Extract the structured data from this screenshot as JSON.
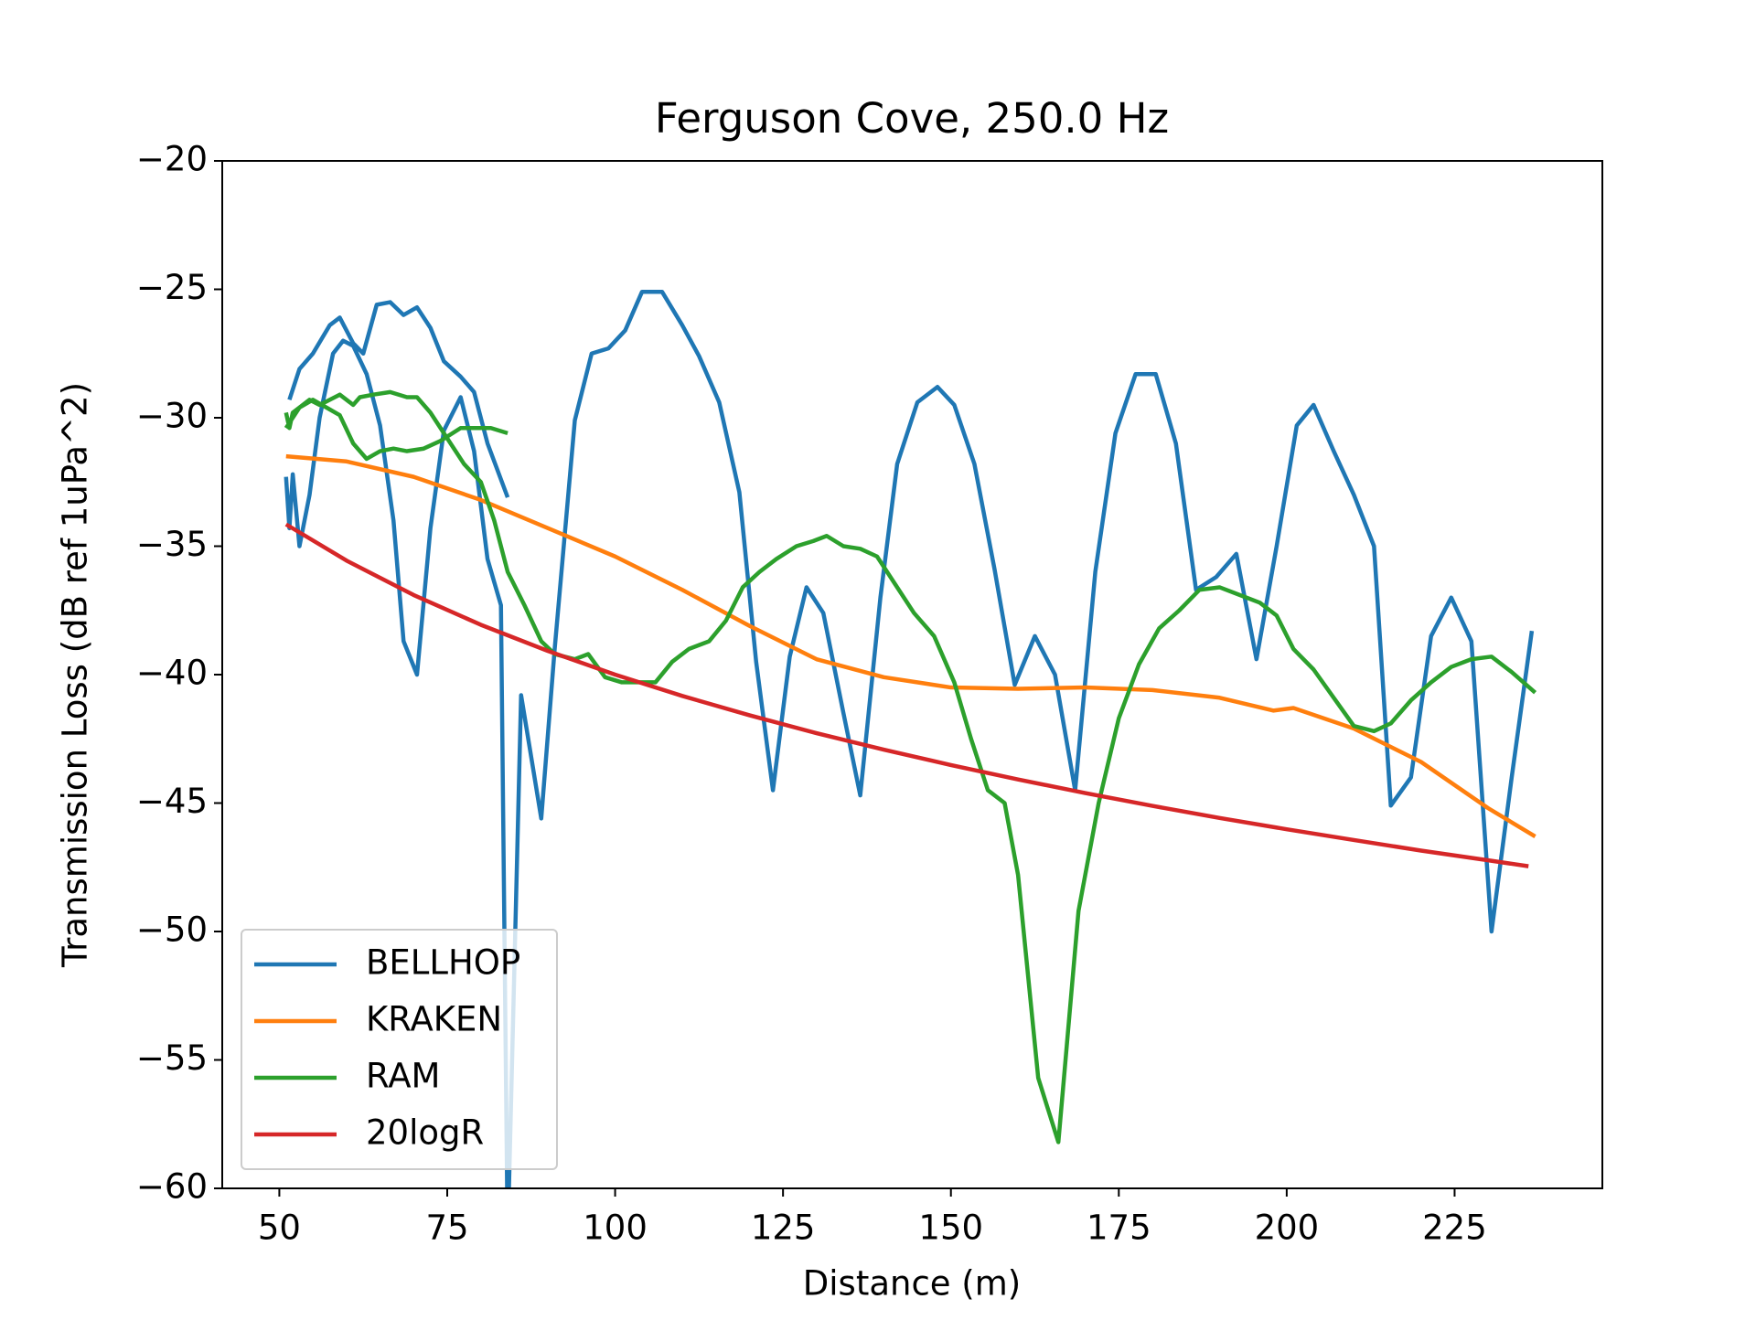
{
  "chart_data": {
    "type": "line",
    "title": "Ferguson Cove, 250.0 Hz",
    "x_label": "Distance (m)",
    "y_label": "Transmission Loss (dB ref 1uPa^2)",
    "xlim": [
      41.5,
      247
    ],
    "ylim": [
      -60,
      -20
    ],
    "xticks": [
      50,
      75,
      100,
      125,
      150,
      175,
      200,
      225
    ],
    "yticks": [
      {
        "value": -20,
        "label": "−20"
      },
      {
        "value": -25,
        "label": "−25"
      },
      {
        "value": -30,
        "label": "−30"
      },
      {
        "value": -35,
        "label": "−35"
      },
      {
        "value": -40,
        "label": "−40"
      },
      {
        "value": -45,
        "label": "−45"
      },
      {
        "value": -50,
        "label": "−50"
      },
      {
        "value": -55,
        "label": "−55"
      },
      {
        "value": -60,
        "label": "−60"
      }
    ],
    "grid": false,
    "legend": "lower left",
    "series": [
      {
        "name": "BELLHOP",
        "color": "#1f77b4",
        "x": [
          51.5,
          53,
          55,
          57.5,
          59,
          61,
          62.5,
          64.5,
          66.5,
          68.5,
          70.5,
          72.5,
          74.5,
          77,
          79,
          81,
          84,
          null,
          51,
          51.5,
          52,
          53,
          54.5,
          56,
          58,
          59.5,
          61,
          63,
          65,
          67,
          68.5,
          70.5,
          72.5,
          74.5,
          77,
          79,
          81,
          83,
          84,
          86,
          89,
          91,
          94,
          96.5,
          99,
          101.5,
          104,
          107,
          110,
          112.5,
          115.5,
          118.5,
          121,
          123.5,
          126,
          128.5,
          131,
          134,
          136.5,
          139.5,
          142,
          145,
          148,
          150.5,
          153.5,
          156.5,
          159.5,
          162.5,
          165.5,
          168.5,
          171.5,
          174.5,
          177.5,
          180.5,
          183.5,
          186.5,
          189.5,
          192.5,
          195.5,
          198.5,
          201.5,
          204,
          207,
          210,
          213,
          215.5,
          218.5,
          221.5,
          224.5,
          227.5,
          230.5,
          233.5,
          236.5
        ],
        "values": [
          -29.3,
          -28.1,
          -27.5,
          -26.4,
          -26.1,
          -27.1,
          -27.5,
          -25.6,
          -25.5,
          -26,
          -25.7,
          -26.5,
          -27.8,
          -28.4,
          -29,
          -31,
          -33.1,
          null,
          -32.3,
          -34.3,
          -32.2,
          -35,
          -33,
          -30,
          -27.5,
          -27,
          -27.2,
          -28.3,
          -30.3,
          -34,
          -38.7,
          -40,
          -34.3,
          -30.5,
          -29.2,
          -31.3,
          -35.5,
          -37.3,
          -62,
          -40.8,
          -45.6,
          -39,
          -30.1,
          -27.5,
          -27.3,
          -26.6,
          -25.1,
          -25.1,
          -26.4,
          -27.6,
          -29.4,
          -32.9,
          -39.5,
          -44.5,
          -39.3,
          -36.6,
          -37.6,
          -41.5,
          -44.7,
          -37,
          -31.8,
          -29.4,
          -28.8,
          -29.5,
          -31.8,
          -35.9,
          -40.4,
          -38.5,
          -40,
          -44.5,
          -36,
          -30.6,
          -28.3,
          -28.3,
          -31,
          -36.7,
          -36.2,
          -35.3,
          -39.4,
          -35,
          -30.3,
          -29.5,
          -31.3,
          -33,
          -35,
          -45.1,
          -44,
          -38.5,
          -37,
          -38.7,
          -50,
          -44,
          -38.3
        ]
      },
      {
        "name": "KRAKEN",
        "color": "#ff7f0e",
        "x": [
          51,
          60,
          70,
          80,
          90,
          100,
          110,
          120,
          130,
          140,
          150,
          160,
          170,
          180,
          190,
          198,
          201,
          210,
          220,
          230,
          237
        ],
        "values": [
          -31.5,
          -31.7,
          -32.3,
          -33.2,
          -34.3,
          -35.4,
          -36.7,
          -38.1,
          -39.4,
          -40.1,
          -40.5,
          -40.55,
          -40.5,
          -40.6,
          -40.9,
          -41.4,
          -41.3,
          -42.1,
          -43.4,
          -45.2,
          -46.3
        ]
      },
      {
        "name": "RAM",
        "color": "#2ca02c",
        "x": [
          51,
          51.5,
          52,
          53,
          55,
          57,
          59,
          61,
          63,
          65,
          67,
          69,
          71.5,
          74,
          77,
          79,
          81.5,
          84,
          null,
          51,
          52,
          53,
          54.5,
          56,
          57.5,
          59,
          61,
          62,
          64,
          66.5,
          69,
          70.5,
          72.5,
          75,
          77.5,
          80,
          82,
          84,
          86.5,
          89,
          91,
          94,
          96,
          98.5,
          101,
          103.5,
          106,
          108.5,
          111,
          114,
          116.5,
          119,
          121.5,
          124,
          127,
          129.5,
          131.5,
          134,
          136.5,
          139,
          141.5,
          144.5,
          147.5,
          150.5,
          153,
          155.5,
          158,
          160,
          163,
          166,
          169,
          172,
          175,
          178,
          181,
          184,
          187,
          190,
          193,
          196,
          198.5,
          201,
          204,
          207,
          210,
          213,
          215.5,
          218.5,
          221.5,
          224.5,
          227.5,
          230.5,
          233.5,
          237
        ],
        "values": [
          -29.8,
          -30.4,
          -29.8,
          -29.6,
          -29.3,
          -29.6,
          -29.9,
          -31,
          -31.6,
          -31.3,
          -31.2,
          -31.3,
          -31.2,
          -30.9,
          -30.4,
          -30.4,
          -30.4,
          -30.6,
          null,
          -30.4,
          -30,
          -29.6,
          -29.3,
          -29.5,
          -29.3,
          -29.1,
          -29.5,
          -29.2,
          -29.1,
          -29,
          -29.2,
          -29.2,
          -29.8,
          -30.8,
          -31.8,
          -32.5,
          -34,
          -36,
          -37.3,
          -38.7,
          -39.2,
          -39.4,
          -39.2,
          -40.1,
          -40.3,
          -40.3,
          -40.3,
          -39.5,
          -39,
          -38.7,
          -37.9,
          -36.6,
          -36,
          -35.5,
          -35,
          -34.8,
          -34.6,
          -35,
          -35.1,
          -35.4,
          -36.4,
          -37.6,
          -38.5,
          -40.3,
          -42.5,
          -44.5,
          -45,
          -47.8,
          -55.7,
          -58.2,
          -49.2,
          -45,
          -41.7,
          -39.6,
          -38.2,
          -37.5,
          -36.7,
          -36.6,
          -36.9,
          -37.2,
          -37.7,
          -39,
          -39.8,
          -40.9,
          -42,
          -42.2,
          -41.9,
          -41,
          -40.3,
          -39.7,
          -39.4,
          -39.3,
          -39.9,
          -40.7
        ]
      },
      {
        "name": "20logR",
        "color": "#d62728",
        "x": [
          51,
          60,
          70,
          80,
          90,
          100,
          110,
          120,
          130,
          140,
          150,
          160,
          170,
          180,
          190,
          200,
          210,
          220,
          230,
          236
        ],
        "values": [
          -34.15,
          -35.56,
          -36.9,
          -38.06,
          -39.08,
          -40,
          -40.83,
          -41.58,
          -42.28,
          -42.92,
          -43.52,
          -44.08,
          -44.61,
          -45.11,
          -45.58,
          -46.02,
          -46.44,
          -46.85,
          -47.23,
          -47.46
        ]
      }
    ]
  }
}
